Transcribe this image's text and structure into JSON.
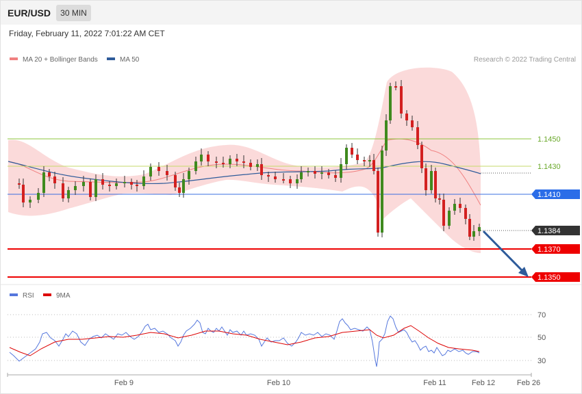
{
  "header": {
    "symbol": "EUR/USD",
    "timeframe": "30 MIN",
    "datetime": "Friday, February 11, 2022 7:01:22 AM CET"
  },
  "legend": {
    "items": [
      {
        "label": "MA 20 + Bollinger Bands",
        "color": "#f08080"
      },
      {
        "label": "MA 50",
        "color": "#2e5b9a"
      }
    ],
    "credit": "Research © 2022 Trading Central"
  },
  "levels": [
    {
      "label": "1.1450",
      "value": 1.145,
      "color": "#8cc43c",
      "style": "text"
    },
    {
      "label": "1.1430",
      "value": 1.143,
      "color": "#8cc43c",
      "style": "text"
    },
    {
      "label": "1.1410",
      "value": 1.141,
      "color": "#2b6de8",
      "style": "badge"
    },
    {
      "label": "1.1384",
      "value": 1.1384,
      "color": "#333333",
      "style": "badge"
    },
    {
      "label": "1.1370",
      "value": 1.137,
      "color": "#ee0000",
      "style": "badge"
    },
    {
      "label": "1.1350",
      "value": 1.135,
      "color": "#ee0000",
      "style": "badge"
    }
  ],
  "rsi_legend": [
    {
      "label": "RSI",
      "color": "#5577dd"
    },
    {
      "label": "9MA",
      "color": "#dd0000"
    }
  ],
  "rsi_levels": [
    "70",
    "50",
    "30"
  ],
  "xaxis": [
    "Feb 9",
    "Feb 10",
    "Feb 11",
    "Feb 12",
    "Feb 26"
  ],
  "chart_data": {
    "type": "candlestick",
    "price_axis": [
      1.135,
      1.137,
      1.1384,
      1.141,
      1.143,
      1.145
    ],
    "x_labels": [
      "Feb 9",
      "Feb 10",
      "Feb 11",
      "Feb 12",
      "Feb 26"
    ],
    "last_price": 1.1384,
    "resistances": [
      1.141,
      1.143,
      1.145
    ],
    "supports": [
      1.137,
      1.135
    ],
    "indicators": [
      "MA 20 + Bollinger Bands",
      "MA 50",
      "RSI",
      "9MA"
    ],
    "rsi_levels": [
      70,
      50,
      30
    ]
  }
}
